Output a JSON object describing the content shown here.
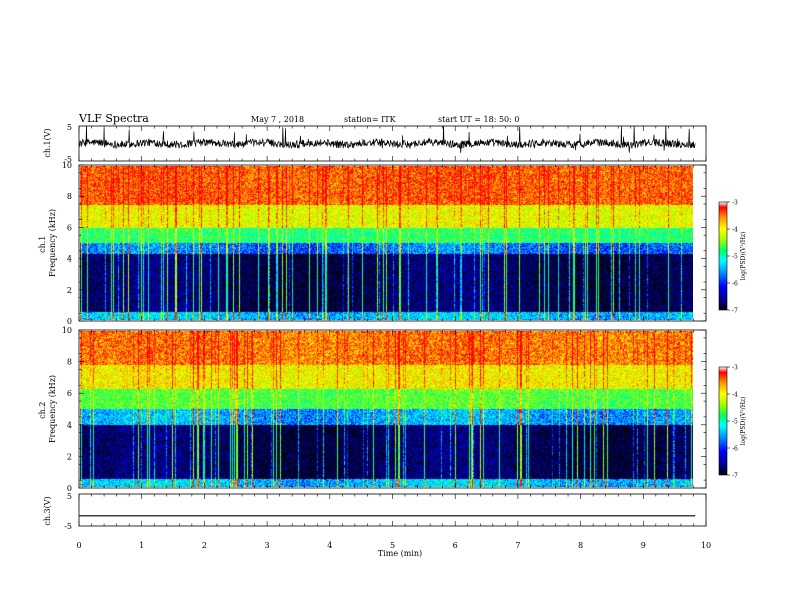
{
  "header": {
    "title": "VLF Spectra",
    "date": "May 7 , 2018",
    "station": "station= ITK",
    "start": "start  UT  =   18: 50: 0"
  },
  "chart_data": [
    {
      "type": "line",
      "panel": "ch1-waveform",
      "ylabel": "ch.1(V)",
      "xlim": [
        0,
        10
      ],
      "ylim": [
        -5,
        5
      ],
      "yticks": [
        "5",
        "-5"
      ],
      "baseline": 0,
      "color": "#000000"
    },
    {
      "type": "heatmap",
      "panel": "ch1-spectrogram",
      "ylabel": "ch.1\nFrequency (kHz)",
      "xlim": [
        0,
        9.83
      ],
      "ylim": [
        0,
        10
      ],
      "yticks": [
        "0",
        "2",
        "4",
        "6",
        "8",
        "10"
      ],
      "colorbar": {
        "label": "log(PSD)(V²/Hz)",
        "range": [
          -7,
          -3
        ],
        "ticks": [
          "-3",
          "-4",
          "-5",
          "-6",
          "-7"
        ]
      },
      "bands_khz": [
        {
          "from": 0,
          "to": 0.5,
          "log_psd": -5.5
        },
        {
          "from": 0.5,
          "to": 4.3,
          "log_psd": -6.7
        },
        {
          "from": 4.3,
          "to": 5.0,
          "log_psd": -5.8
        },
        {
          "from": 5.0,
          "to": 6.0,
          "log_psd": -4.8
        },
        {
          "from": 6.0,
          "to": 7.5,
          "log_psd": -4.0
        },
        {
          "from": 7.5,
          "to": 10,
          "log_psd": -3.3
        }
      ]
    },
    {
      "type": "heatmap",
      "panel": "ch2-spectrogram",
      "ylabel": "ch.2\nFrequency (kHz)",
      "xlim": [
        0,
        9.83
      ],
      "ylim": [
        0,
        10
      ],
      "yticks": [
        "0",
        "2",
        "4",
        "6",
        "8",
        "10"
      ],
      "colorbar": {
        "label": "log(PSD)(V²/Hz)",
        "range": [
          -7,
          -3
        ],
        "ticks": [
          "-3",
          "-4",
          "-5",
          "-6",
          "-7"
        ]
      },
      "bands_khz": [
        {
          "from": 0,
          "to": 0.5,
          "log_psd": -5.5
        },
        {
          "from": 0.5,
          "to": 4.0,
          "log_psd": -6.7
        },
        {
          "from": 4.0,
          "to": 5.0,
          "log_psd": -5.6
        },
        {
          "from": 5.0,
          "to": 6.3,
          "log_psd": -4.6
        },
        {
          "from": 6.3,
          "to": 7.8,
          "log_psd": -3.9
        },
        {
          "from": 7.8,
          "to": 10,
          "log_psd": -3.4
        }
      ]
    },
    {
      "type": "line",
      "panel": "ch3-waveform",
      "ylabel": "ch.3(V)",
      "xlim": [
        0,
        10
      ],
      "ylim": [
        -5,
        5
      ],
      "yticks": [
        "5",
        "-5"
      ],
      "baseline": -1.8,
      "color": "#000000"
    }
  ],
  "xaxis": {
    "label": "Time (min)",
    "ticks": [
      "0",
      "1",
      "2",
      "3",
      "4",
      "5",
      "6",
      "7",
      "8",
      "9",
      "10"
    ],
    "range": [
      0,
      10
    ]
  },
  "colors": {
    "colormap": [
      "#000000",
      "#000080",
      "#0000ff",
      "#00a0ff",
      "#00ffff",
      "#00ff60",
      "#a0ff00",
      "#ffff00",
      "#ff9000",
      "#ff0000"
    ]
  }
}
